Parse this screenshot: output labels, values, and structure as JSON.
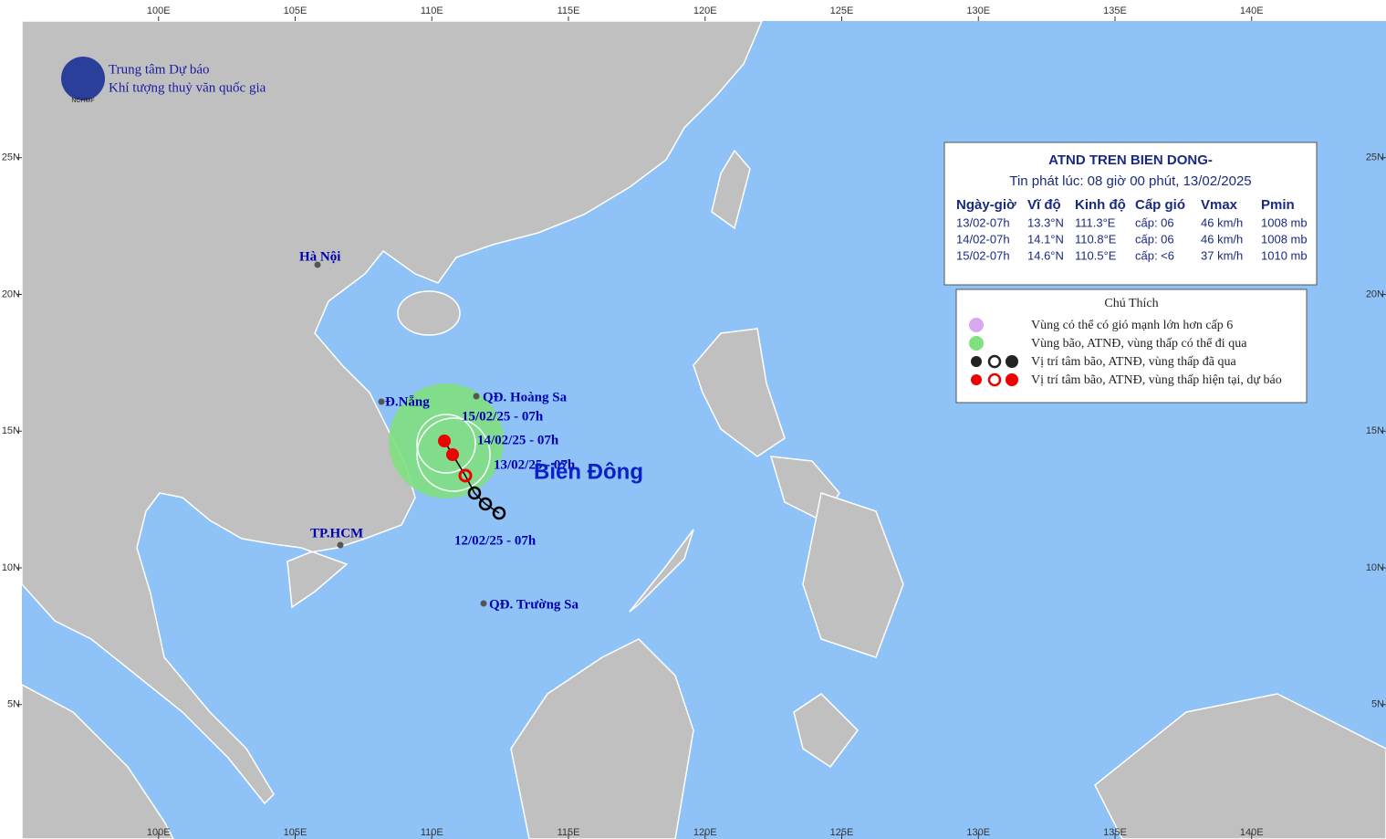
{
  "header": {
    "org_line1": "Trung tâm Dự báo",
    "org_line2": "Khí tượng thuỷ văn quốc gia",
    "logo_text": "NCHMF"
  },
  "map": {
    "lon_ticks": [
      {
        "value": 100,
        "label": "100E"
      },
      {
        "value": 105,
        "label": "105E"
      },
      {
        "value": 110,
        "label": "110E"
      },
      {
        "value": 115,
        "label": "115E"
      },
      {
        "value": 120,
        "label": "120E"
      },
      {
        "value": 125,
        "label": "125E"
      },
      {
        "value": 130,
        "label": "130E"
      },
      {
        "value": 135,
        "label": "135E"
      },
      {
        "value": 140,
        "label": "140E"
      }
    ],
    "lat_ticks": [
      {
        "value": 25,
        "label": "25N"
      },
      {
        "value": 20,
        "label": "20N"
      },
      {
        "value": 15,
        "label": "15N"
      },
      {
        "value": 10,
        "label": "10N"
      },
      {
        "value": 5,
        "label": "5N"
      }
    ]
  },
  "places": [
    "Hà Nội",
    "Đ.Nẵng",
    "TP.HCM",
    "QĐ. Hoàng Sa",
    "QĐ. Trường Sa"
  ],
  "storm_labels": [
    "15/02/25 - 07h",
    "14/02/25 - 07h",
    "13/02/25 - 07h",
    "12/02/25 - 07h"
  ],
  "sea_label": "Biển Đông",
  "bulletin": {
    "title": "ATND TREN BIEN DONG-",
    "issued": "Tin phát lúc: 08 giờ 00 phút, 13/02/2025",
    "columns": [
      "Ngày-giờ",
      "Vĩ độ",
      "Kinh độ",
      "Cấp gió",
      "Vmax",
      "Pmin"
    ],
    "rows": [
      [
        "13/02-07h",
        "13.3°N",
        "111.3°E",
        "cấp: 06",
        "46 km/h",
        "1008 mb"
      ],
      [
        "14/02-07h",
        "14.1°N",
        "110.8°E",
        "cấp: 06",
        "46 km/h",
        "1008 mb"
      ],
      [
        "15/02-07h",
        "14.6°N",
        "110.5°E",
        "cấp: <6",
        "37 km/h",
        "1010 mb"
      ]
    ]
  },
  "legend": {
    "title": "Chú Thích",
    "items": [
      "Vùng có thể có gió mạnh lớn hơn cấp 6",
      "Vùng bão, ATNĐ, vùng thấp có thể đi qua",
      "Vị trí tâm bão, ATNĐ, vùng thấp đã qua",
      "Vị trí tâm bão, ATNĐ, vùng thấp hiện tại, dự báo"
    ]
  }
}
